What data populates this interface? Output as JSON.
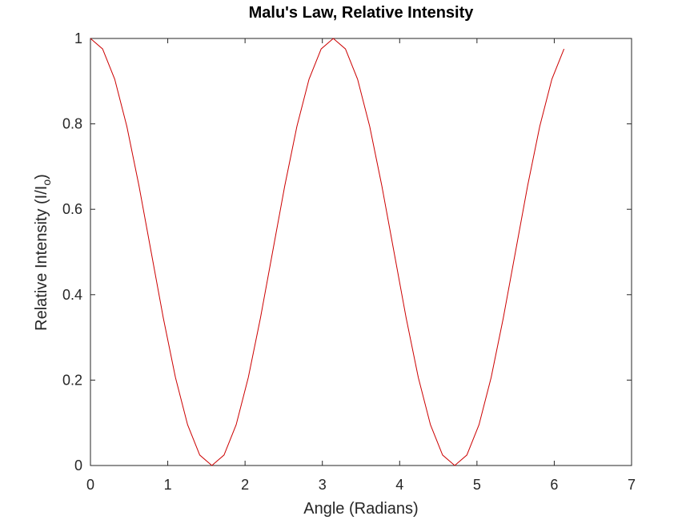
{
  "chart_data": {
    "type": "line",
    "title": "Malu's Law, Relative Intensity",
    "xlabel": "Angle (Radians)",
    "ylabel": "Relative Intensity (I/Iₒ)",
    "ylabel_main": "Relative Intensity (I/I",
    "ylabel_sub": "o",
    "ylabel_close": ")",
    "xlim": [
      0,
      7
    ],
    "ylim": [
      0,
      1
    ],
    "xticks": [
      0,
      1,
      2,
      3,
      4,
      5,
      6,
      7
    ],
    "yticks": [
      0,
      0.2,
      0.4,
      0.6,
      0.8,
      1
    ],
    "xtick_labels": [
      "0",
      "1",
      "2",
      "3",
      "4",
      "5",
      "6",
      "7"
    ],
    "ytick_labels": [
      "0",
      "0.2",
      "0.4",
      "0.6",
      "0.8",
      "1"
    ],
    "grid": false,
    "series": [
      {
        "color": "#cc0000",
        "x": [
          0,
          0.1571,
          0.3142,
          0.4712,
          0.6283,
          0.7854,
          0.9425,
          1.0996,
          1.2566,
          1.4137,
          1.5708,
          1.7279,
          1.885,
          2.042,
          2.1991,
          2.3562,
          2.5133,
          2.6704,
          2.8274,
          2.9845,
          3.1416,
          3.2987,
          3.4558,
          3.6128,
          3.7699,
          3.927,
          4.0841,
          4.2412,
          4.3982,
          4.5553,
          4.7124,
          4.8695,
          5.0265,
          5.1836,
          5.3407,
          5.4978,
          5.6549,
          5.8119,
          5.969,
          6.1261
        ],
        "y": [
          1,
          0.9755,
          0.9045,
          0.7939,
          0.6545,
          0.5,
          0.3455,
          0.2061,
          0.0955,
          0.0245,
          0,
          0.0245,
          0.0955,
          0.2061,
          0.3455,
          0.5,
          0.6545,
          0.7939,
          0.9045,
          0.9755,
          1,
          0.9755,
          0.9045,
          0.7939,
          0.6545,
          0.5,
          0.3455,
          0.2061,
          0.0955,
          0.0245,
          0,
          0.0245,
          0.0955,
          0.2061,
          0.3455,
          0.5,
          0.6545,
          0.7939,
          0.9045,
          0.9755
        ]
      }
    ]
  }
}
